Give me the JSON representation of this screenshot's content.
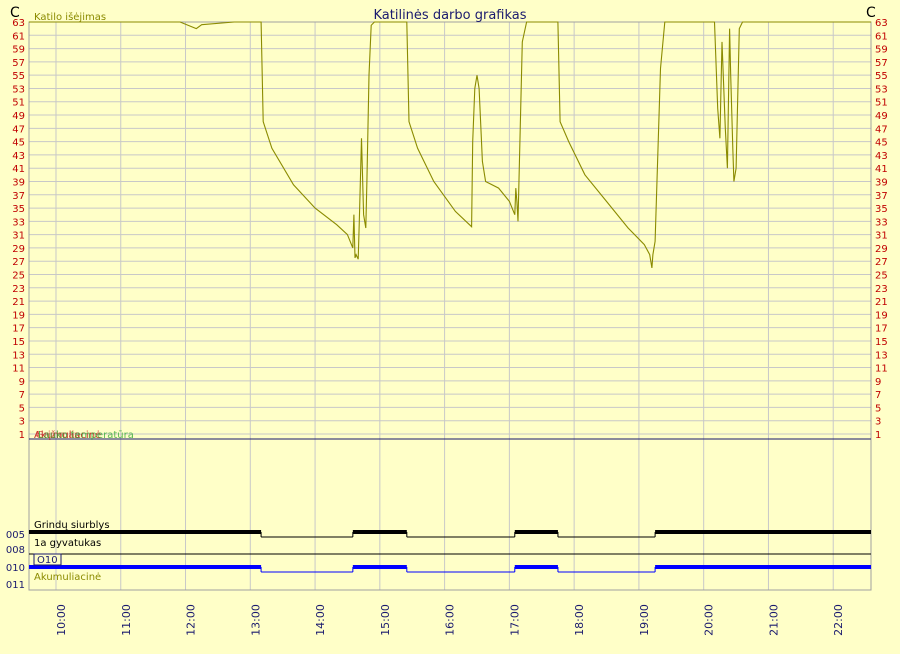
{
  "chart_data": {
    "type": "line",
    "title": "Katilinės darbo grafikas",
    "y_unit_left": "C",
    "y_unit_right": "C",
    "ylim": [
      1,
      63
    ],
    "y_ticks": [
      1,
      3,
      5,
      7,
      9,
      11,
      13,
      15,
      17,
      19,
      21,
      23,
      25,
      27,
      29,
      31,
      33,
      35,
      37,
      39,
      41,
      43,
      45,
      47,
      49,
      51,
      53,
      55,
      57,
      59,
      61,
      63
    ],
    "xlim": [
      "09:35",
      "22:35"
    ],
    "x_ticks": [
      "10:00",
      "11:00",
      "12:00",
      "13:00",
      "14:00",
      "15:00",
      "16:00",
      "17:00",
      "18:00",
      "19:00",
      "20:00",
      "21:00",
      "22:00"
    ],
    "grid": true,
    "series": [
      {
        "name": "Katilo išėjimas",
        "color": "#8b8b00",
        "points": [
          [
            "09:35",
            63
          ],
          [
            "10:15",
            63
          ],
          [
            "11:00",
            63
          ],
          [
            "11:40",
            63
          ],
          [
            "11:55",
            63
          ],
          [
            "12:10",
            62
          ],
          [
            "12:15",
            62.6
          ],
          [
            "12:45",
            63
          ],
          [
            "13:10",
            63
          ],
          [
            "13:12",
            48
          ],
          [
            "13:20",
            44
          ],
          [
            "13:40",
            38.5
          ],
          [
            "14:00",
            35
          ],
          [
            "14:20",
            32.5
          ],
          [
            "14:30",
            31
          ],
          [
            "14:35",
            29
          ],
          [
            "14:36",
            34
          ],
          [
            "14:37",
            27.5
          ],
          [
            "14:38",
            28
          ],
          [
            "14:40",
            27.3
          ],
          [
            "14:41",
            33
          ],
          [
            "14:43",
            45.5
          ],
          [
            "14:45",
            34
          ],
          [
            "14:47",
            32
          ],
          [
            "14:48",
            39
          ],
          [
            "14:50",
            55
          ],
          [
            "14:52",
            62.5
          ],
          [
            "14:55",
            63
          ],
          [
            "15:10",
            63
          ],
          [
            "15:25",
            63
          ],
          [
            "15:27",
            48
          ],
          [
            "15:35",
            44
          ],
          [
            "15:50",
            39
          ],
          [
            "16:10",
            34.5
          ],
          [
            "16:25",
            32.2
          ],
          [
            "16:26",
            45
          ],
          [
            "16:28",
            53
          ],
          [
            "16:30",
            55
          ],
          [
            "16:32",
            53
          ],
          [
            "16:35",
            42
          ],
          [
            "16:38",
            39
          ],
          [
            "16:50",
            38
          ],
          [
            "17:00",
            36
          ],
          [
            "17:05",
            34
          ],
          [
            "17:06",
            38
          ],
          [
            "17:07",
            36
          ],
          [
            "17:08",
            33
          ],
          [
            "17:12",
            60
          ],
          [
            "17:16",
            63
          ],
          [
            "17:30",
            63
          ],
          [
            "17:45",
            63
          ],
          [
            "17:47",
            48
          ],
          [
            "17:55",
            45
          ],
          [
            "18:10",
            40
          ],
          [
            "18:30",
            36
          ],
          [
            "18:50",
            32
          ],
          [
            "19:05",
            29.5
          ],
          [
            "19:10",
            28
          ],
          [
            "19:12",
            26
          ],
          [
            "19:13",
            28
          ],
          [
            "19:15",
            30
          ],
          [
            "19:20",
            56
          ],
          [
            "19:24",
            63
          ],
          [
            "19:40",
            63
          ],
          [
            "19:55",
            63
          ],
          [
            "20:10",
            63
          ],
          [
            "20:13",
            50
          ],
          [
            "20:15",
            45.5
          ],
          [
            "20:17",
            60
          ],
          [
            "20:20",
            47
          ],
          [
            "20:22",
            41
          ],
          [
            "20:24",
            62
          ],
          [
            "20:25",
            55
          ],
          [
            "20:27",
            44
          ],
          [
            "20:28",
            39
          ],
          [
            "20:30",
            41
          ],
          [
            "20:33",
            62
          ],
          [
            "20:36",
            63
          ],
          [
            "21:00",
            63
          ],
          [
            "21:30",
            63
          ],
          [
            "22:00",
            63
          ],
          [
            "22:35",
            63
          ]
        ]
      }
    ],
    "hidden_legend": [
      "Akumuliacinė",
      "Grįžimas",
      "Lauko temperatūra"
    ],
    "state_tracks": [
      {
        "id": "005",
        "label": "Grindų siurblys",
        "color": "#000000",
        "on_intervals": [
          [
            "09:35",
            "13:10"
          ],
          [
            "14:35",
            "15:25"
          ],
          [
            "17:05",
            "17:45"
          ],
          [
            "19:15",
            "22:35"
          ]
        ]
      },
      {
        "id": "008",
        "label": "1a gyvatukas",
        "color": "#000000",
        "on_intervals": []
      },
      {
        "id": "010",
        "label": "O10",
        "color": "#0000ff",
        "on_intervals": [
          [
            "09:35",
            "13:10"
          ],
          [
            "14:35",
            "15:25"
          ],
          [
            "17:05",
            "17:45"
          ],
          [
            "19:15",
            "22:35"
          ]
        ]
      },
      {
        "id": "011",
        "label": "Akumuliacinė",
        "color": "#8b8b00",
        "on_intervals": []
      }
    ]
  }
}
